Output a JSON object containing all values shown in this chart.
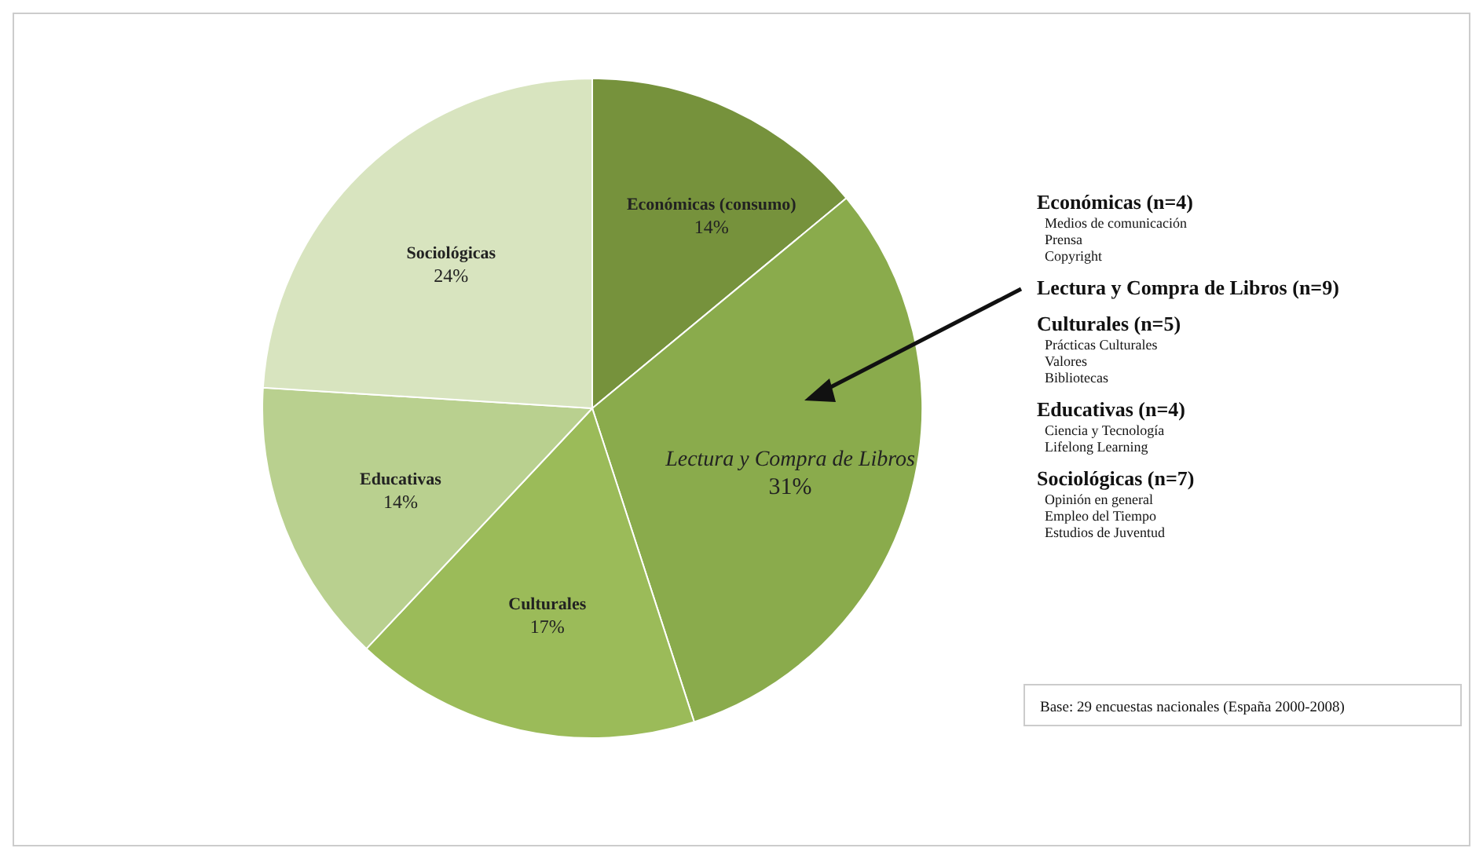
{
  "chart_data": {
    "type": "pie",
    "categories": [
      "Económicas (consumo)",
      "Lectura y Compra de Libros",
      "Culturales",
      "Educativas",
      "Sociológicas"
    ],
    "values": [
      14,
      31,
      17,
      14,
      24
    ],
    "colors": [
      "#76923c",
      "#8aab4c",
      "#9bbb59",
      "#b9d08f",
      "#d8e4bf"
    ],
    "value_labels": [
      "14%",
      "31%",
      "17%",
      "14%",
      "24%"
    ],
    "annotations": [
      "Económicas (n=4)\nMedios de comunicación\nPrensa\nCopyright",
      "Lectura y Compra de Libros (n=9)",
      "Culturales (n=5)\nPrácticas Culturales\nValores\nBibliotecas",
      "Educativas (n=4)\nCiencia y Tecnología\nLifelong Learning",
      "Sociológicas (n=7)\nOpinión en general\nEmpleo del Tiempo\nEstudios de Juventud",
      "Base: 29 encuestas nacionales (España 2000-2008)"
    ]
  }
}
